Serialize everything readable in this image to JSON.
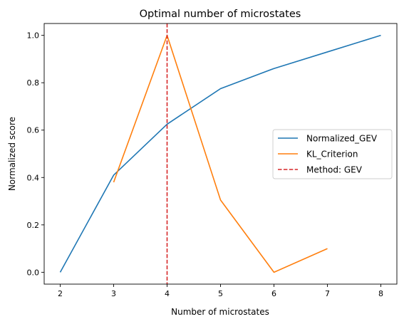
{
  "chart_data": {
    "type": "line",
    "title": "Optimal number of microstates",
    "xlabel": "Number of microstates",
    "ylabel": "Normalized score",
    "xlim": [
      1.7,
      8.3
    ],
    "ylim": [
      -0.05,
      1.05
    ],
    "xticks": [
      2,
      3,
      4,
      5,
      6,
      7,
      8
    ],
    "xtick_labels": [
      "2",
      "3",
      "4",
      "5",
      "6",
      "7",
      "8"
    ],
    "yticks": [
      0.0,
      0.2,
      0.4,
      0.6,
      0.8,
      1.0
    ],
    "ytick_labels": [
      "0.0",
      "0.2",
      "0.4",
      "0.6",
      "0.8",
      "1.0"
    ],
    "grid": false,
    "legend_position": "center-right",
    "series": [
      {
        "name": "Normalized_GEV",
        "color": "#1f77b4",
        "x": [
          2,
          3,
          4,
          5,
          6,
          7,
          8
        ],
        "y": [
          0.0,
          0.41,
          0.625,
          0.775,
          0.86,
          0.93,
          1.0
        ]
      },
      {
        "name": "KL_Criterion",
        "color": "#ff7f0e",
        "x": [
          3,
          4,
          5,
          6,
          7
        ],
        "y": [
          0.38,
          1.0,
          0.305,
          0.0,
          0.1
        ]
      }
    ],
    "vline": {
      "name": "Method: GEV",
      "x": 4,
      "color": "#d62728",
      "style": "dashed"
    }
  }
}
